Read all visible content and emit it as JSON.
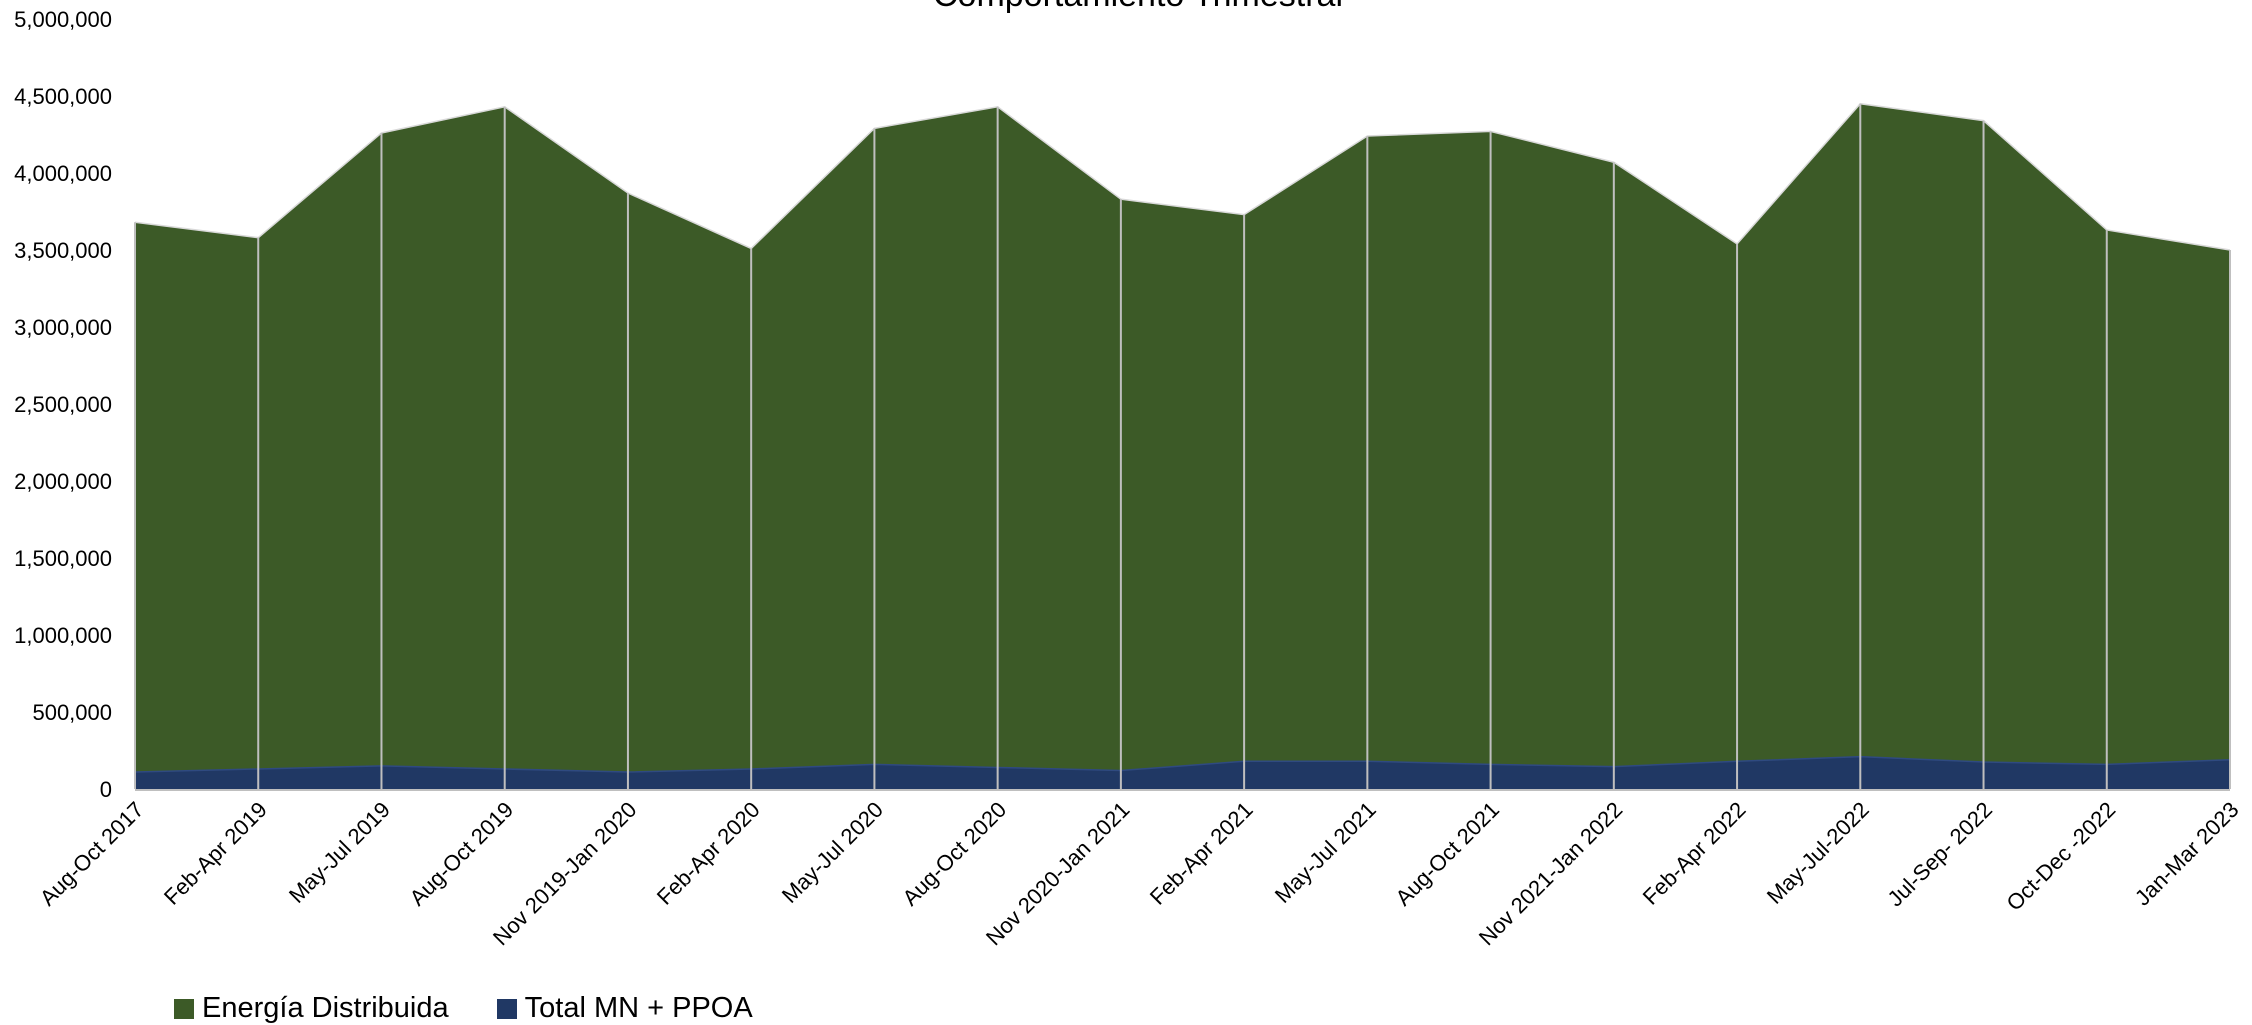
{
  "chart_data": {
    "type": "area",
    "title": "Comportamiento Trimestral",
    "xlabel": "",
    "ylabel": "",
    "ylim": [
      0,
      5000000
    ],
    "yticks": [
      "0",
      "500,000",
      "1,000,000",
      "1,500,000",
      "2,000,000",
      "2,500,000",
      "3,000,000",
      "3,500,000",
      "4,000,000",
      "4,500,000",
      "5,000,000"
    ],
    "categories": [
      "Aug-Oct 2017",
      "Feb-Apr 2019",
      "May-Jul 2019",
      "Aug-Oct 2019",
      "Nov 2019-Jan 2020",
      "Feb-Apr 2020",
      "May-Jul 2020",
      "Aug-Oct 2020",
      "Nov 2020-Jan 2021",
      "Feb-Apr 2021",
      "May-Jul 2021",
      "Aug-Oct 2021",
      "Nov 2021-Jan 2022",
      "Feb-Apr 2022",
      "May-Jul-2022",
      "Jul-Sep- 2022",
      "Oct-Dec -2022",
      "Jan-Mar 2023"
    ],
    "legend_position": "bottom-left",
    "grid": false,
    "series": [
      {
        "name": "Energía Distribuida",
        "color": "#3c5a27",
        "values": [
          3680000,
          3580000,
          4260000,
          4430000,
          3870000,
          3510000,
          4290000,
          4430000,
          3830000,
          3730000,
          4240000,
          4270000,
          4070000,
          3540000,
          4450000,
          4340000,
          3630000,
          3500000
        ]
      },
      {
        "name": "Total MN + PPOA",
        "color": "#203864",
        "values": [
          110000,
          130000,
          150000,
          130000,
          110000,
          130000,
          160000,
          140000,
          120000,
          180000,
          180000,
          160000,
          145000,
          180000,
          210000,
          175000,
          160000,
          190000
        ]
      }
    ]
  }
}
